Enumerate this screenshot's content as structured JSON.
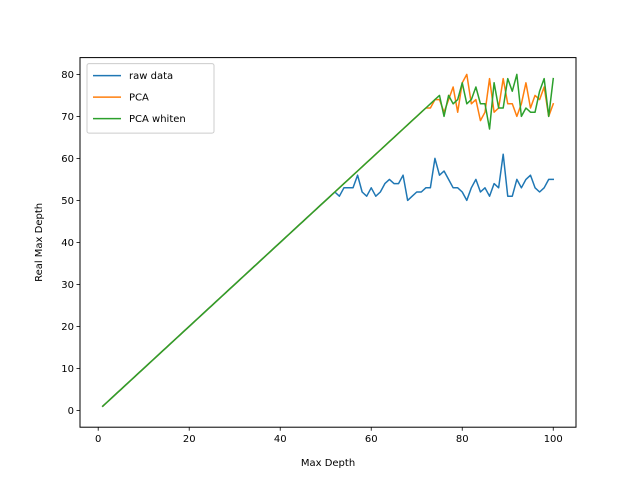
{
  "chart_data": {
    "type": "line",
    "xlabel": "Max Depth",
    "ylabel": "Real Max Depth",
    "xlim": [
      -4,
      105
    ],
    "ylim": [
      -4,
      84
    ],
    "xticks": [
      0,
      20,
      40,
      60,
      80,
      100
    ],
    "yticks": [
      0,
      10,
      20,
      30,
      40,
      50,
      60,
      70,
      80
    ],
    "grid": false,
    "legend_position": "upper-left",
    "x_start": 1,
    "series": [
      {
        "name": "raw data",
        "color": "#1f77b4",
        "values": [
          1,
          2,
          3,
          4,
          5,
          6,
          7,
          8,
          9,
          10,
          11,
          12,
          13,
          14,
          15,
          16,
          17,
          18,
          19,
          20,
          21,
          22,
          23,
          24,
          25,
          26,
          27,
          28,
          29,
          30,
          31,
          32,
          33,
          34,
          35,
          36,
          37,
          38,
          39,
          40,
          41,
          42,
          43,
          44,
          45,
          46,
          47,
          48,
          49,
          50,
          51,
          52,
          51,
          53,
          53,
          53,
          56,
          52,
          51,
          53,
          51,
          52,
          54,
          55,
          54,
          54,
          56,
          50,
          51,
          52,
          52,
          53,
          53,
          60,
          56,
          57,
          55,
          53,
          53,
          52,
          50,
          53,
          55,
          52,
          53,
          51,
          54,
          53,
          61,
          51,
          51,
          55,
          53,
          55,
          56,
          53,
          52,
          53,
          55,
          55
        ]
      },
      {
        "name": "PCA",
        "color": "#ff7f0e",
        "values": [
          1,
          2,
          3,
          4,
          5,
          6,
          7,
          8,
          9,
          10,
          11,
          12,
          13,
          14,
          15,
          16,
          17,
          18,
          19,
          20,
          21,
          22,
          23,
          24,
          25,
          26,
          27,
          28,
          29,
          30,
          31,
          32,
          33,
          34,
          35,
          36,
          37,
          38,
          39,
          40,
          41,
          42,
          43,
          44,
          45,
          46,
          47,
          48,
          49,
          50,
          51,
          52,
          53,
          54,
          55,
          56,
          57,
          58,
          59,
          60,
          61,
          62,
          63,
          64,
          65,
          66,
          67,
          68,
          69,
          70,
          71,
          72,
          72,
          74,
          74,
          71,
          74,
          77,
          71,
          78,
          80,
          73,
          74,
          69,
          71,
          79,
          71,
          72,
          79,
          73,
          73,
          70,
          73,
          78,
          72,
          75,
          74,
          77,
          70,
          73
        ]
      },
      {
        "name": "PCA whiten",
        "color": "#2ca02c",
        "values": [
          1,
          2,
          3,
          4,
          5,
          6,
          7,
          8,
          9,
          10,
          11,
          12,
          13,
          14,
          15,
          16,
          17,
          18,
          19,
          20,
          21,
          22,
          23,
          24,
          25,
          26,
          27,
          28,
          29,
          30,
          31,
          32,
          33,
          34,
          35,
          36,
          37,
          38,
          39,
          40,
          41,
          42,
          43,
          44,
          45,
          46,
          47,
          48,
          49,
          50,
          51,
          52,
          53,
          54,
          55,
          56,
          57,
          58,
          59,
          60,
          61,
          62,
          63,
          64,
          65,
          66,
          67,
          68,
          69,
          70,
          71,
          72,
          73,
          74,
          75,
          70,
          75,
          73,
          74,
          78,
          73,
          74,
          77,
          73,
          73,
          67,
          78,
          72,
          72,
          79,
          76,
          80,
          70,
          72,
          71,
          71,
          76,
          79,
          70,
          79
        ]
      }
    ]
  }
}
